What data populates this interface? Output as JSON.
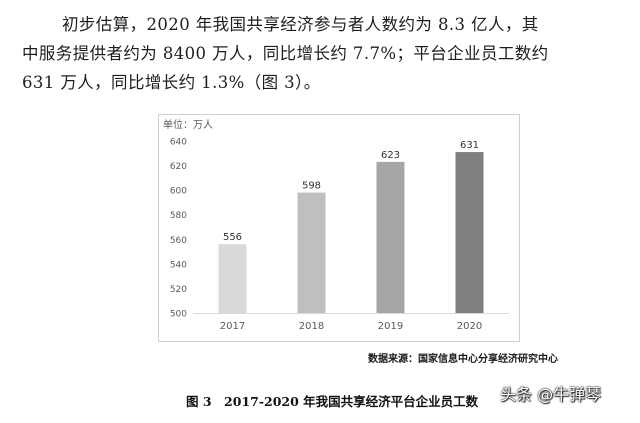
{
  "paragraph": {
    "line1": "初步估算，2020 年我国共享经济参与者人数约为 8.3 亿人，其",
    "line2": "中服务提供者约为 8400 万人，同比增长约 7.7%；平台企业员工数约",
    "line3": "631 万人，同比增长约 1.3%（图 3）。"
  },
  "colors": {
    "bars": [
      "#d9d9d9",
      "#bfbfbf",
      "#a6a6a6",
      "#7f7f7f"
    ],
    "axis_text": "#595959",
    "gridline": "#d9d9d9"
  },
  "chart_data": {
    "type": "bar",
    "unit_label": "单位：万人",
    "categories": [
      "2017",
      "2018",
      "2019",
      "2020"
    ],
    "values": [
      556,
      598,
      623,
      631
    ],
    "data_labels": [
      "556",
      "598",
      "623",
      "631"
    ],
    "yticks": [
      500,
      520,
      540,
      560,
      580,
      600,
      620,
      640
    ],
    "ylim": [
      500,
      640
    ],
    "grid": false,
    "legend": "none"
  },
  "source": "数据来源：国家信息中心分享经济研究中心",
  "caption": "图 3　2017-2020 年我国共享经济平台企业员工数",
  "watermark": "头条 @牛弹琴"
}
